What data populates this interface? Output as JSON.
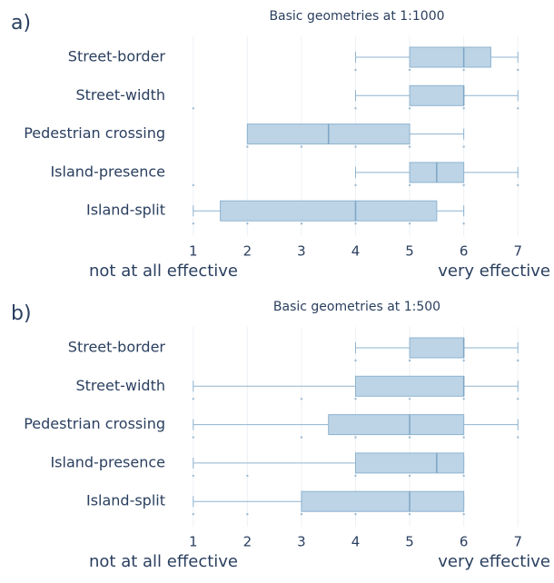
{
  "chart_data": [
    {
      "type": "box",
      "panel": "a)",
      "title": "Basic geometries at 1:1000",
      "categories": [
        "Street-border",
        "Street-width",
        "Pedestrian crossing",
        "Island-presence",
        "Island-split"
      ],
      "boxes": [
        {
          "min": 4,
          "q1": 5,
          "median": 6,
          "q3": 6.5,
          "max": 7,
          "points": [
            4,
            5,
            6,
            7
          ]
        },
        {
          "min": 4,
          "q1": 5,
          "median": 6,
          "q3": 6,
          "max": 7,
          "points": [
            1,
            4,
            5,
            6,
            7
          ]
        },
        {
          "min": 2,
          "q1": 2,
          "median": 3.5,
          "q3": 5,
          "max": 6,
          "points": [
            2,
            3,
            4,
            5,
            6
          ]
        },
        {
          "min": 4,
          "q1": 5,
          "median": 5.5,
          "q3": 6,
          "max": 7,
          "points": [
            1,
            4,
            5,
            6,
            7
          ]
        },
        {
          "min": 1,
          "q1": 1.5,
          "median": 4,
          "q3": 5.5,
          "max": 6,
          "points": [
            1,
            2,
            3,
            4,
            5,
            6
          ]
        }
      ],
      "color": "#bcd4e6",
      "xlim": [
        0.5,
        7.5
      ],
      "xticks": [
        1,
        2,
        3,
        4,
        5,
        6,
        7
      ],
      "xlabel_left": "not at all effective",
      "xlabel_right": "very effective"
    },
    {
      "type": "box",
      "panel": "b)",
      "title": "Basic geometries at 1:500",
      "categories": [
        "Street-border",
        "Street-width",
        "Pedestrian crossing",
        "Island-presence",
        "Island-split"
      ],
      "boxes": [
        {
          "min": 4,
          "q1": 5,
          "median": 6,
          "q3": 6,
          "max": 7,
          "points": [
            4,
            5,
            6,
            7
          ]
        },
        {
          "min": 1,
          "q1": 4,
          "median": 6,
          "q3": 6,
          "max": 7,
          "points": [
            1,
            3,
            4,
            5,
            6,
            7
          ]
        },
        {
          "min": 1,
          "q1": 3.5,
          "median": 5,
          "q3": 6,
          "max": 7,
          "points": [
            1,
            3,
            4,
            5,
            6,
            7
          ]
        },
        {
          "min": 1,
          "q1": 4,
          "median": 5.5,
          "q3": 6,
          "max": 6,
          "points": [
            1,
            2,
            4,
            5,
            6
          ]
        },
        {
          "min": 1,
          "q1": 3,
          "median": 5,
          "q3": 6,
          "max": 6,
          "points": [
            1,
            2,
            3,
            4,
            5,
            6
          ]
        }
      ],
      "color": "#bcd4e6",
      "xlim": [
        0.5,
        7.5
      ],
      "xticks": [
        1,
        2,
        3,
        4,
        5,
        6,
        7
      ],
      "xlabel_left": "not at all effective",
      "xlabel_right": "very effective"
    }
  ]
}
